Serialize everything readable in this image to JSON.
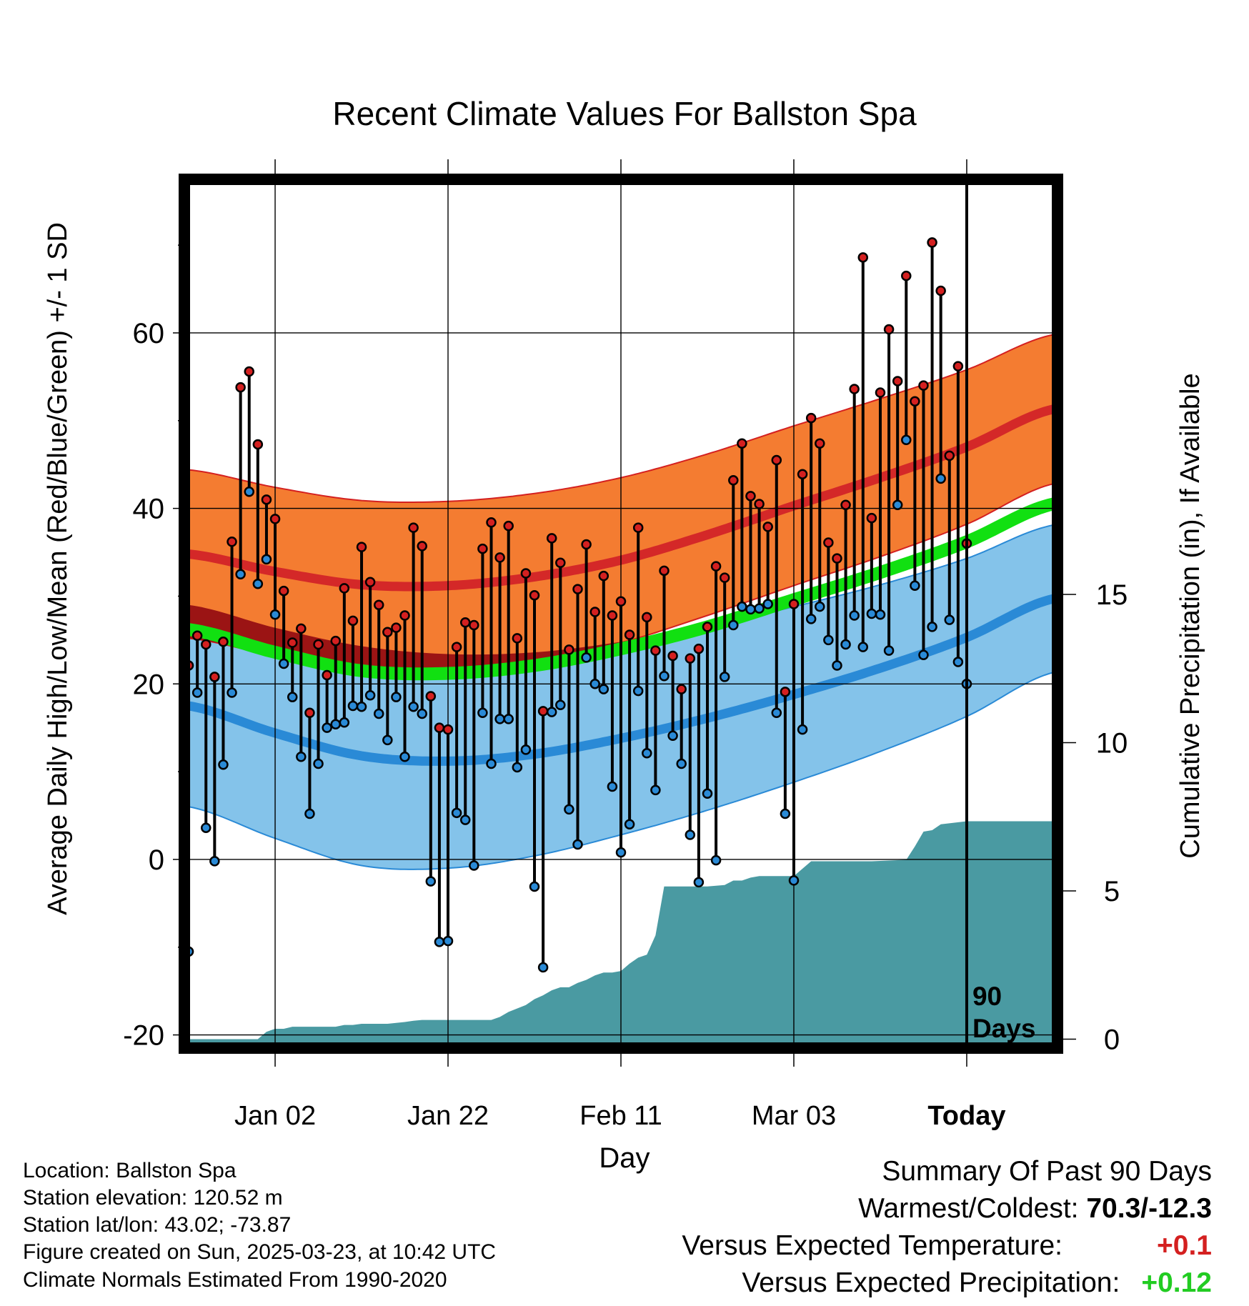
{
  "chart_data": {
    "type": "line",
    "title": "Recent Climate Values For Ballston Spa",
    "xlabel": "Day",
    "ylabel": "Average Daily High/Low/Mean (Red/Blue/Green) +/- 1 SD",
    "y2label": "Cumulative Precipitation (in), If Available",
    "ylim": [
      -21.5,
      77.5
    ],
    "y2lim": [
      -0.3,
      29.0
    ],
    "yticks": [
      "60",
      "40",
      "20",
      "0",
      "-20"
    ],
    "ytick_values": [
      60,
      40,
      20,
      0,
      -20
    ],
    "y2ticks": [
      "15",
      "10",
      "5",
      "0"
    ],
    "y2tick_values": [
      15,
      10,
      5,
      0
    ],
    "xticks": [
      "Jan 02",
      "Jan 22",
      "Feb 11",
      "Mar 03",
      "Today"
    ],
    "xtick_values": [
      11,
      31,
      51,
      71,
      91
    ],
    "xlim": [
      0.5,
      101.5
    ],
    "grid": true,
    "today_day": 91,
    "today_label_line1": "90",
    "today_label_line2": "Days",
    "normals": {
      "days": [
        1,
        11,
        21,
        31,
        41,
        51,
        61,
        71,
        81,
        91,
        101
      ],
      "high_mean": [
        34.8,
        32.8,
        31.3,
        31.2,
        32.2,
        34.1,
        37.0,
        40.3,
        43.5,
        47.0,
        51.3
      ],
      "high_sd": [
        9.6,
        9.6,
        9.6,
        9.6,
        9.5,
        9.4,
        9.2,
        9.1,
        9.0,
        8.8,
        8.5
      ],
      "low_mean": [
        17.5,
        14.4,
        11.8,
        11.2,
        12.0,
        13.8,
        16.1,
        18.8,
        21.8,
        25.3,
        29.7
      ],
      "low_sd": [
        11.5,
        12.0,
        12.5,
        12.2,
        11.6,
        11.0,
        10.5,
        10.0,
        9.5,
        9.0,
        8.4
      ],
      "mean": [
        26.2,
        23.6,
        21.5,
        21.2,
        22.1,
        24.0,
        26.5,
        29.6,
        32.7,
        36.2,
        40.5
      ]
    },
    "series": [
      {
        "name": "High",
        "color": "#d42020",
        "x": [
          1,
          2,
          3,
          4,
          5,
          6,
          7,
          8,
          9,
          10,
          11,
          12,
          13,
          14,
          15,
          16,
          17,
          18,
          19,
          20,
          21,
          22,
          23,
          24,
          25,
          26,
          27,
          28,
          29,
          30,
          31,
          32,
          33,
          34,
          35,
          36,
          37,
          38,
          39,
          40,
          41,
          42,
          43,
          44,
          45,
          46,
          47,
          48,
          49,
          50,
          51,
          52,
          53,
          54,
          55,
          56,
          57,
          58,
          59,
          60,
          61,
          62,
          63,
          64,
          65,
          66,
          67,
          68,
          69,
          70,
          71,
          72,
          73,
          74,
          75,
          76,
          77,
          78,
          79,
          80,
          81,
          82,
          83,
          84,
          85,
          86,
          87,
          88,
          89,
          90,
          91
        ],
        "values": [
          22.1,
          25.5,
          24.5,
          20.8,
          24.8,
          36.2,
          53.8,
          55.6,
          47.3,
          41.0,
          38.8,
          30.6,
          24.7,
          26.3,
          16.7,
          24.5,
          21.0,
          24.9,
          30.9,
          27.2,
          35.6,
          31.6,
          29.0,
          25.9,
          26.4,
          27.8,
          37.8,
          35.7,
          18.6,
          15.0,
          14.8,
          24.2,
          27.0,
          26.7,
          35.4,
          38.4,
          34.4,
          38.0,
          25.2,
          32.6,
          30.1,
          16.9,
          36.6,
          33.8,
          23.9,
          30.8,
          35.9,
          28.2,
          32.3,
          27.8,
          29.4,
          25.6,
          37.8,
          27.6,
          23.8,
          32.9,
          23.2,
          19.4,
          22.9,
          24.0,
          26.5,
          33.4,
          32.1,
          43.2,
          47.4,
          41.4,
          40.5,
          37.9,
          45.5,
          19.1,
          29.1,
          43.9,
          50.3,
          47.4,
          36.1,
          34.3,
          40.4,
          53.6,
          68.6,
          38.9,
          53.2,
          60.4,
          54.5,
          66.5,
          52.2,
          54.0,
          70.3,
          64.8,
          46.0,
          56.2,
          36.0
        ]
      },
      {
        "name": "Low",
        "color": "#2a8ad6",
        "x": [
          1,
          2,
          3,
          4,
          5,
          6,
          7,
          8,
          9,
          10,
          11,
          12,
          13,
          14,
          15,
          16,
          17,
          18,
          19,
          20,
          21,
          22,
          23,
          24,
          25,
          26,
          27,
          28,
          29,
          30,
          31,
          32,
          33,
          34,
          35,
          36,
          37,
          38,
          39,
          40,
          41,
          42,
          43,
          44,
          45,
          46,
          47,
          48,
          49,
          50,
          51,
          52,
          53,
          54,
          55,
          56,
          57,
          58,
          59,
          60,
          61,
          62,
          63,
          64,
          65,
          66,
          67,
          68,
          69,
          70,
          71,
          72,
          73,
          74,
          75,
          76,
          77,
          78,
          79,
          80,
          81,
          82,
          83,
          84,
          85,
          86,
          87,
          88,
          89,
          90,
          91
        ],
        "values": [
          -10.5,
          19.0,
          3.6,
          -0.2,
          10.8,
          19.0,
          32.5,
          41.9,
          31.4,
          34.2,
          27.9,
          22.3,
          18.5,
          11.7,
          5.2,
          10.9,
          15.0,
          15.4,
          15.6,
          17.5,
          17.4,
          18.7,
          16.6,
          13.6,
          18.5,
          11.7,
          17.4,
          16.6,
          -2.5,
          -9.4,
          -9.3,
          5.3,
          4.5,
          -0.7,
          16.7,
          10.9,
          16.0,
          16.0,
          10.5,
          12.5,
          -3.1,
          -12.3,
          16.8,
          17.6,
          5.7,
          1.7,
          23.0,
          20.0,
          19.4,
          8.3,
          0.8,
          4.0,
          19.2,
          12.1,
          7.9,
          20.9,
          14.1,
          10.9,
          2.8,
          -2.6,
          7.5,
          -0.1,
          20.8,
          26.7,
          28.8,
          28.5,
          28.6,
          29.1,
          16.7,
          5.2,
          -2.4,
          14.8,
          27.4,
          28.8,
          25.0,
          22.1,
          24.5,
          27.8,
          24.2,
          28.0,
          27.9,
          23.8,
          40.4,
          47.8,
          31.2,
          23.3,
          26.5,
          43.4,
          27.3,
          22.5,
          20.0
        ]
      }
    ],
    "precip": {
      "x": [
        1,
        9,
        10,
        11,
        12,
        13,
        18,
        19,
        20,
        21,
        24,
        25,
        26,
        27,
        28,
        29,
        30,
        36,
        37,
        38,
        40,
        41,
        42,
        43,
        44,
        45,
        46,
        47,
        48,
        49,
        50,
        51,
        52,
        53,
        54,
        55,
        56,
        60,
        61,
        63,
        64,
        65,
        66,
        67,
        68,
        71,
        72,
        73,
        79,
        80,
        84,
        85,
        86,
        87,
        88,
        91,
        101
      ],
      "values": [
        0.0,
        0.0,
        0.25,
        0.35,
        0.35,
        0.42,
        0.42,
        0.48,
        0.48,
        0.52,
        0.52,
        0.55,
        0.58,
        0.62,
        0.65,
        0.65,
        0.65,
        0.65,
        0.75,
        0.92,
        1.15,
        1.35,
        1.48,
        1.65,
        1.75,
        1.75,
        1.9,
        2.0,
        2.15,
        2.25,
        2.25,
        2.3,
        2.55,
        2.75,
        2.85,
        3.5,
        5.15,
        5.15,
        5.15,
        5.2,
        5.35,
        5.35,
        5.45,
        5.5,
        5.5,
        5.5,
        5.75,
        6.0,
        6.0,
        6.0,
        6.05,
        6.5,
        7.0,
        7.05,
        7.25,
        7.35,
        7.35
      ],
      "color": "#4a9aa2"
    }
  },
  "info": {
    "location": "Location: Ballston Spa",
    "elevation": "Station elevation: 120.52 m",
    "latlon": "Station lat/lon: 43.02; -73.87",
    "created": "Figure created on Sun, 2025-03-23, at 10:42 UTC",
    "normals": "Climate Normals Estimated From 1990-2020"
  },
  "summary": {
    "title": "Summary Of Past 90 Days",
    "warm_cold_label": "Warmest/Coldest: ",
    "warm_cold_value": "70.3/-12.3",
    "temp_label": "Versus Expected Temperature:",
    "temp_value": "+0.1",
    "temp_color": "#d42020",
    "precip_label": "Versus Expected Precipitation:",
    "precip_value": "+0.12",
    "precip_color": "#22cc22"
  }
}
